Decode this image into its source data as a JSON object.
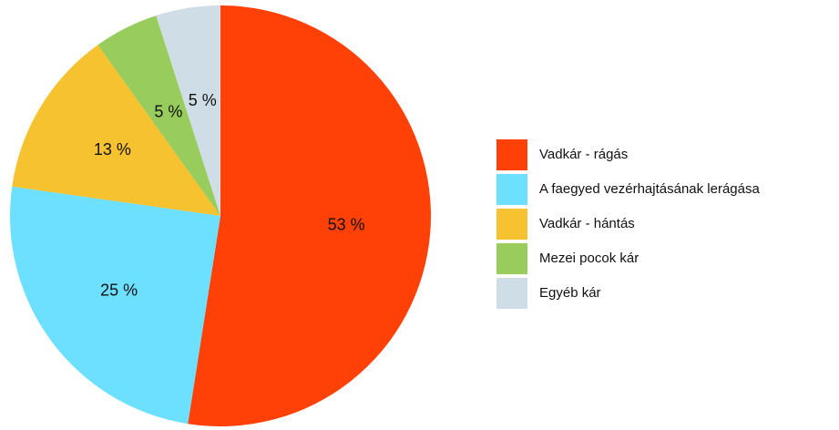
{
  "chart_data": {
    "type": "pie",
    "categories": [
      "Vadkár - rágás",
      "A faegyed vezérhajtásának lerágása",
      "Vadkár - hántás",
      "Mezei pocok kár",
      "Egyéb kár"
    ],
    "values": [
      53,
      25,
      13,
      5,
      5
    ],
    "value_labels": [
      "53 %",
      "25 %",
      "13 %",
      "5 %",
      "5 %"
    ],
    "colors": [
      "#ff4108",
      "#6ee0ff",
      "#f7c22f",
      "#98cc5c",
      "#cfdde6"
    ],
    "legend": "right"
  }
}
